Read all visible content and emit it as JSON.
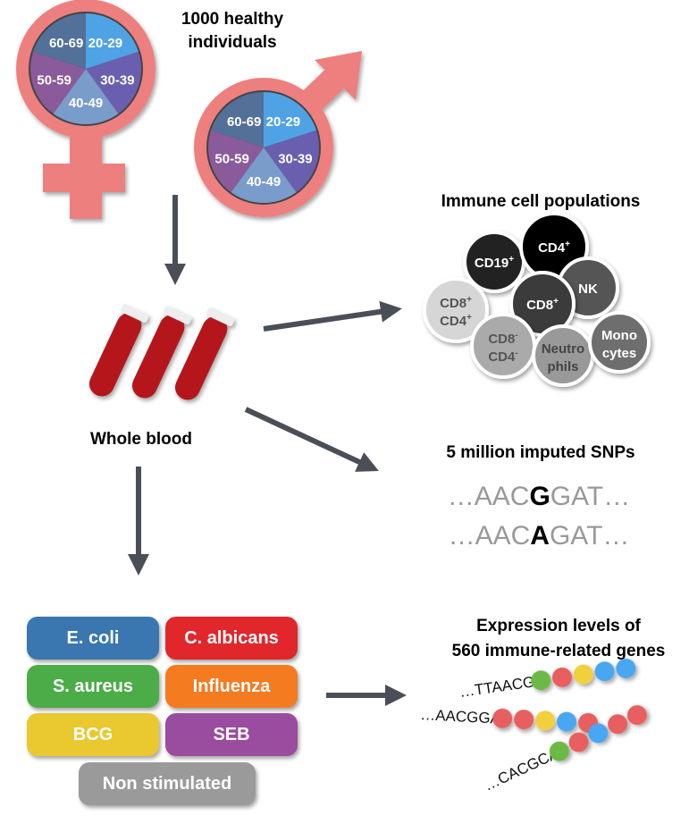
{
  "title": "1000 healthy individuals",
  "title_lines": [
    "1000 healthy",
    "individuals"
  ],
  "age_groups": [
    "20-29",
    "30-39",
    "40-49",
    "50-59",
    "60-69"
  ],
  "age_colors": [
    "#4fa3e4",
    "#6a5fae",
    "#7a9ccb",
    "#8a5a9a",
    "#537099"
  ],
  "symbol_color": "#ee7f7f",
  "arrow_color": "#4a4f57",
  "blood_label": "Whole blood",
  "immune": {
    "title": "Immune cell populations",
    "cells": [
      {
        "l1": "CD19",
        "sup1": "+",
        "l2": "",
        "sup2": "",
        "fill": "#222222",
        "text": "#ffffff"
      },
      {
        "l1": "CD4",
        "sup1": "+",
        "l2": "",
        "sup2": "",
        "fill": "#000000",
        "text": "#ffffff"
      },
      {
        "l1": "NK",
        "sup1": "",
        "l2": "",
        "sup2": "",
        "fill": "#555555",
        "text": "#ffffff"
      },
      {
        "l1": "CD8",
        "sup1": "+",
        "l2": "CD4",
        "sup2": "+",
        "fill": "#d6d6d6",
        "text": "#555555"
      },
      {
        "l1": "CD8",
        "sup1": "+",
        "l2": "",
        "sup2": "",
        "fill": "#3a3a3a",
        "text": "#ffffff"
      },
      {
        "l1": "CD8",
        "sup1": "-",
        "l2": "CD4",
        "sup2": "-",
        "fill": "#aaaaaa",
        "text": "#555555"
      },
      {
        "l1": "Neutro",
        "sup1": "",
        "l2": "phils",
        "sup2": "",
        "fill": "#999999",
        "text": "#444444"
      },
      {
        "l1": "Mono",
        "sup1": "",
        "l2": "cytes",
        "sup2": "",
        "fill": "#6e6e6e",
        "text": "#ffffff"
      }
    ]
  },
  "snps": {
    "title": "5 million imputed SNPs",
    "seq1": {
      "pre": "…AAC",
      "allele": "G",
      "post": "GAT…"
    },
    "seq2": {
      "pre": "…AAC",
      "allele": "A",
      "post": "GAT…"
    }
  },
  "stimuli": [
    {
      "label": "E. coli",
      "color": "#3a76b0"
    },
    {
      "label": "C. albicans",
      "color": "#e1262c"
    },
    {
      "label": "S. aureus",
      "color": "#4cac48"
    },
    {
      "label": "Influenza",
      "color": "#f47b20"
    },
    {
      "label": "BCG",
      "color": "#e9c830"
    },
    {
      "label": "SEB",
      "color": "#9a4c9e"
    },
    {
      "label": "Non stimulated",
      "color": "#9a9a9a"
    }
  ],
  "expression": {
    "title_lines": [
      "Expression levels of",
      "560 immune-related genes"
    ],
    "strands": [
      {
        "seq": "…TTAACGG",
        "beads": [
          "#6cb944",
          "#e85e5e",
          "#f2cf3c",
          "#4aa6f0",
          "#4aa6f0"
        ]
      },
      {
        "seq": "…AACGGAT",
        "beads": [
          "#e85e5e",
          "#e85e5e",
          "#f2cf3c",
          "#4aa6f0",
          "#e85e5e"
        ]
      },
      {
        "seq": "…CACGCAA",
        "beads": [
          "#6cb944",
          "#e85e5e",
          "#4aa6f0",
          "#e85e5e",
          "#e85e5e"
        ]
      }
    ]
  }
}
